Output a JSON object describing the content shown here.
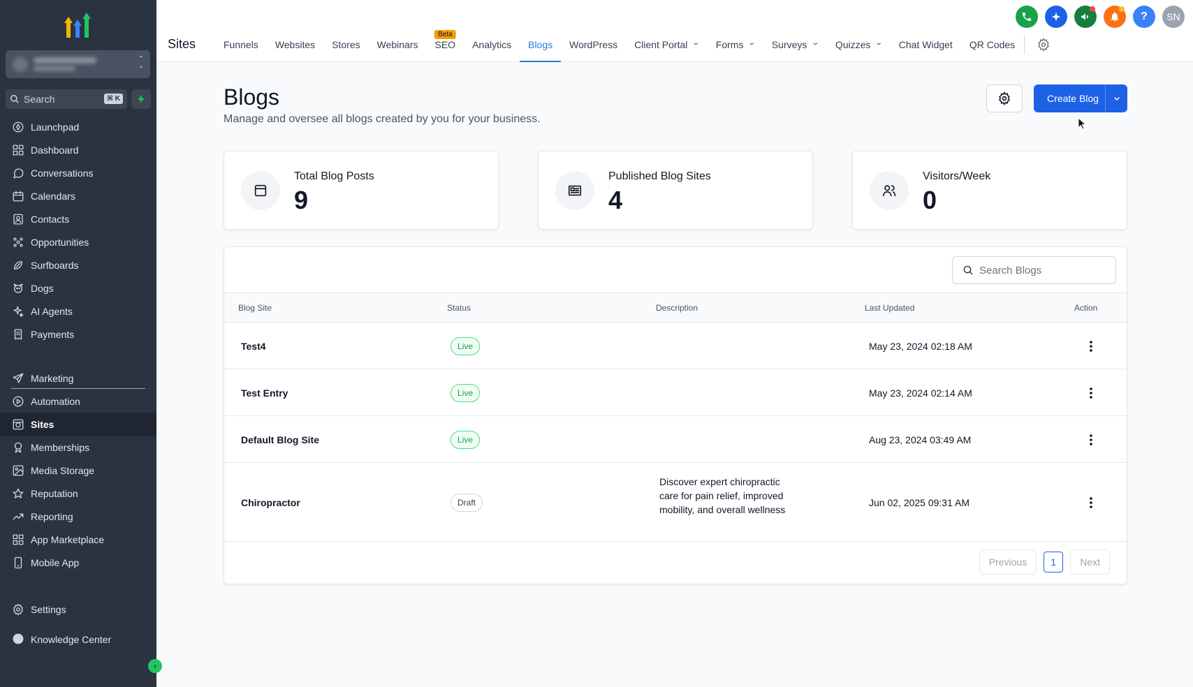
{
  "sidebar": {
    "search_label": "Search",
    "search_shortcut": "⌘ K",
    "items": [
      {
        "label": "Launchpad",
        "icon": "rocket-icon"
      },
      {
        "label": "Dashboard",
        "icon": "dashboard-icon"
      },
      {
        "label": "Conversations",
        "icon": "chat-icon"
      },
      {
        "label": "Calendars",
        "icon": "calendar-icon"
      },
      {
        "label": "Contacts",
        "icon": "contacts-icon"
      },
      {
        "label": "Opportunities",
        "icon": "opportunities-icon"
      },
      {
        "label": "Surfboards",
        "icon": "surfboard-icon"
      },
      {
        "label": "Dogs",
        "icon": "dog-icon"
      },
      {
        "label": "AI Agents",
        "icon": "sparkle-icon"
      },
      {
        "label": "Payments",
        "icon": "receipt-icon"
      },
      {
        "label": "Marketing",
        "icon": "send-icon"
      },
      {
        "label": "Automation",
        "icon": "automation-icon"
      },
      {
        "label": "Sites",
        "icon": "globe-icon"
      },
      {
        "label": "Memberships",
        "icon": "award-icon"
      },
      {
        "label": "Media Storage",
        "icon": "image-icon"
      },
      {
        "label": "Reputation",
        "icon": "star-icon"
      },
      {
        "label": "Reporting",
        "icon": "trend-icon"
      },
      {
        "label": "App Marketplace",
        "icon": "grid-icon"
      },
      {
        "label": "Mobile App",
        "icon": "phone-icon"
      },
      {
        "label": "Knowledge Center",
        "icon": "book-icon"
      },
      {
        "label": "Settings",
        "icon": "gear-icon"
      }
    ],
    "active": "Sites"
  },
  "topbar": {
    "section": "Sites",
    "tabs": [
      {
        "label": "Funnels"
      },
      {
        "label": "Websites"
      },
      {
        "label": "Stores"
      },
      {
        "label": "Webinars"
      },
      {
        "label": "SEO",
        "badge": "Beta"
      },
      {
        "label": "Analytics"
      },
      {
        "label": "Blogs",
        "active": true
      },
      {
        "label": "WordPress"
      },
      {
        "label": "Client Portal",
        "dropdown": true
      },
      {
        "label": "Forms",
        "dropdown": true
      },
      {
        "label": "Surveys",
        "dropdown": true
      },
      {
        "label": "Quizzes",
        "dropdown": true
      },
      {
        "label": "Chat Widget"
      },
      {
        "label": "QR Codes"
      }
    ],
    "avatar_initials": "SN",
    "help_label": "?",
    "colors": {
      "phone": "#16a34a",
      "ai": "#1d62e6",
      "announce": "#15803d",
      "bell": "#f97316",
      "help": "#3b82f6",
      "avatar": "#9ca3af"
    }
  },
  "page": {
    "title": "Blogs",
    "subtitle": "Manage and oversee all blogs created by you for your business.",
    "create_label": "Create Blog"
  },
  "stats": [
    {
      "label": "Total Blog Posts",
      "value": "9",
      "icon": "document-icon"
    },
    {
      "label": "Published Blog Sites",
      "value": "4",
      "icon": "newspaper-icon"
    },
    {
      "label": "Visitors/Week",
      "value": "0",
      "icon": "users-icon"
    }
  ],
  "table": {
    "search_placeholder": "Search Blogs",
    "columns": [
      "Blog Site",
      "Status",
      "Description",
      "Last Updated",
      "Action"
    ],
    "rows": [
      {
        "name": "Test4",
        "status": "Live",
        "description": "",
        "updated": "May 23, 2024 02:18 AM"
      },
      {
        "name": "Test Entry",
        "status": "Live",
        "description": "",
        "updated": "May 23, 2024 02:14 AM"
      },
      {
        "name": "Default Blog Site",
        "status": "Live",
        "description": "",
        "updated": "Aug 23, 2024 03:49 AM"
      },
      {
        "name": "Chiropractor",
        "status": "Draft",
        "description": "Discover expert chiropractic care for pain relief, improved mobility, and overall wellness",
        "updated": "Jun 02, 2025 09:31 AM"
      }
    ],
    "pagination": {
      "previous": "Previous",
      "page": "1",
      "next": "Next"
    }
  }
}
